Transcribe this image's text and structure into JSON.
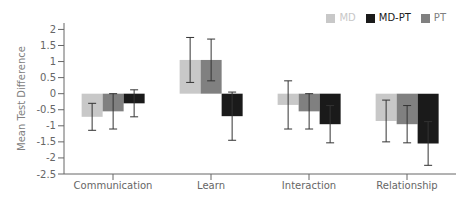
{
  "chart_data": {
    "type": "bar",
    "categories": [
      "Communication",
      "Learn",
      "Interaction",
      "Relationship"
    ],
    "series": [
      {
        "name": "MD",
        "color": "#c8c8c8",
        "values": [
          -0.72,
          1.05,
          -0.35,
          -0.85
        ],
        "errors": [
          0.42,
          0.7,
          0.75,
          0.65
        ]
      },
      {
        "name": "PT",
        "color": "#808080",
        "values": [
          -0.55,
          1.05,
          -0.55,
          -0.95
        ],
        "errors": [
          0.55,
          0.65,
          0.55,
          0.58
        ]
      },
      {
        "name": "MD-PT",
        "color": "#1a1a1a",
        "values": [
          -0.3,
          -0.7,
          -0.95,
          -1.55
        ],
        "errors": [
          0.42,
          0.75,
          0.58,
          0.68
        ]
      }
    ],
    "ylabel": "Mean Test Difference",
    "ylim": [
      -2.5,
      2.2
    ],
    "yticks": [
      -2.5,
      -2,
      -1.5,
      -1,
      -0.5,
      0,
      0.5,
      1,
      1.5,
      2
    ],
    "legend": "upper right",
    "grid": false
  }
}
